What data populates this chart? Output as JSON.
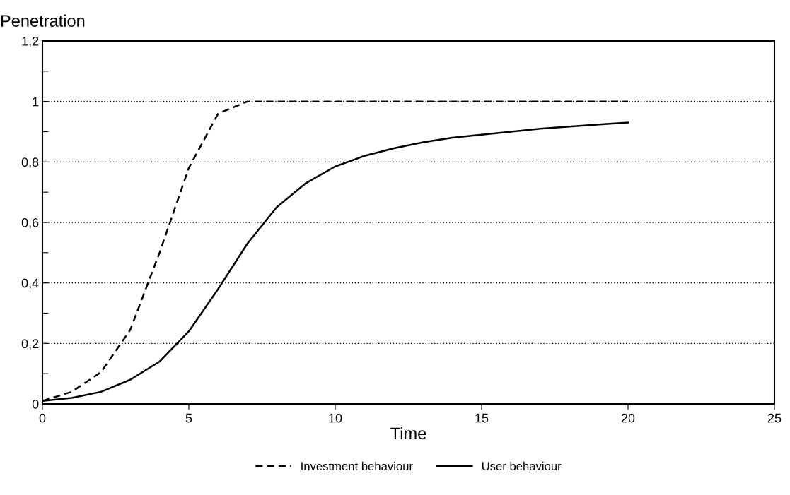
{
  "chart_data": {
    "type": "line",
    "xlabel": "Time",
    "ylabel": "Penetration",
    "x": [
      0,
      1,
      2,
      3,
      4,
      5,
      6,
      7,
      8,
      9,
      10,
      11,
      12,
      13,
      14,
      15,
      16,
      17,
      18,
      19,
      20
    ],
    "series": [
      {
        "name": "Investment behaviour",
        "color": "#000000",
        "line_style": "dashed",
        "values": [
          0.01,
          0.04,
          0.105,
          0.245,
          0.5,
          0.78,
          0.96,
          1.0,
          1.0,
          1.0,
          1.0,
          1.0,
          1.0,
          1.0,
          1.0,
          1.0,
          1.0,
          1.0,
          1.0,
          1.0,
          1.0
        ]
      },
      {
        "name": "User behaviour",
        "color": "#000000",
        "line_style": "solid",
        "values": [
          0.01,
          0.02,
          0.04,
          0.08,
          0.14,
          0.24,
          0.38,
          0.53,
          0.65,
          0.73,
          0.785,
          0.82,
          0.845,
          0.865,
          0.88,
          0.89,
          0.9,
          0.91,
          0.917,
          0.924,
          0.93
        ]
      }
    ],
    "xlim": [
      0,
      25
    ],
    "xticks": [
      0,
      5,
      10,
      15,
      20,
      25
    ],
    "ylim": [
      0,
      1.2
    ],
    "yticks": [
      0,
      {
        "value": 0.1,
        "label": null
      },
      {
        "value": 0.2,
        "label": "0,2"
      },
      {
        "value": 0.3,
        "label": null
      },
      {
        "value": 0.4,
        "label": "0,4"
      },
      {
        "value": 0.5,
        "label": null
      },
      {
        "value": 0.6,
        "label": "0,6"
      },
      {
        "value": 0.7,
        "label": null
      },
      {
        "value": 0.8,
        "label": "0,8"
      },
      {
        "value": 0.9,
        "label": null
      },
      1,
      {
        "value": 1.1,
        "label": null
      },
      {
        "value": 1.2,
        "label": "1,2"
      }
    ],
    "grid": "y",
    "legend": "bottom",
    "marker": "none"
  }
}
